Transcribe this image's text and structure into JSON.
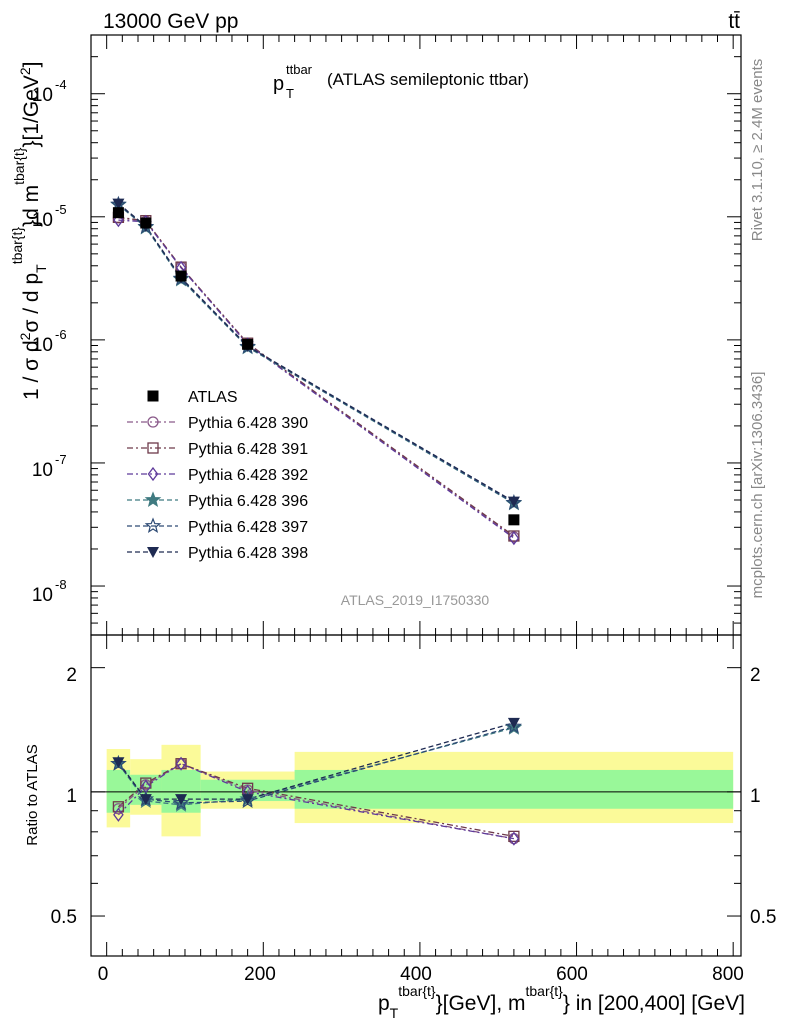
{
  "header": {
    "energy_label": "13000 GeV pp",
    "process_label": "tt̄"
  },
  "main_plot": {
    "title_main": "p",
    "title_sub": "T",
    "title_sup": "ttbar",
    "title_rest": "(ATLAS semileptonic ttbar)",
    "watermark": "ATLAS_2019_I1750330",
    "ylabel_a": "1 / σ d",
    "ylabel_b": "2",
    "ylabel_c": "σ / d p",
    "ylabel_d": "T",
    "ylabel_e": "tbar{t}",
    "ylabel_f": "}d m",
    "ylabel_g": "tbar{t}",
    "ylabel_h": "}[1/GeV",
    "ylabel_i": "2",
    "ylabel_j": "]",
    "ytick_labels": [
      "10",
      "10",
      "10",
      "10",
      "10"
    ],
    "ytick_exps": [
      "-8",
      "-7",
      "-6",
      "-5",
      "-4"
    ]
  },
  "ratio_plot": {
    "ylabel": "Ratio to ATLAS",
    "ytick_labels": [
      "0.5",
      "1",
      "2"
    ]
  },
  "xaxis": {
    "tick_labels": [
      "0",
      "200",
      "400",
      "600",
      "800"
    ],
    "label_p": "p",
    "label_T": "T",
    "label_sup1": "tbar{t}",
    "label_mid": "}[GeV], m",
    "label_sup2": "tbar{t}",
    "label_end": "} in [200,400] [GeV]"
  },
  "side": {
    "rivet": "Rivet 3.1.10, ≥ 2.4M events",
    "mcplots": "mcplots.cern.ch [arXiv:1306.3436]"
  },
  "legend": {
    "entries": [
      "ATLAS",
      "Pythia 6.428 390",
      "Pythia 6.428 391",
      "Pythia 6.428 392",
      "Pythia 6.428 396",
      "Pythia 6.428 397",
      "Pythia 6.428 398"
    ]
  },
  "chart_data": {
    "type": "scatter",
    "xlabel": "p_T^{tbar{t}}[GeV], m^{tbar{t}} in [200,400] [GeV]",
    "ylabel": "1 / σ d²σ / d p_T^{tbar{t}}d m^{tbar{t}}[1/GeV²]",
    "xlim": [
      -20,
      810
    ],
    "ylim_log": [
      4e-09,
      0.0003
    ],
    "ratio_ylim_log": [
      0.4,
      2.4
    ],
    "x": [
      15,
      50,
      95,
      180,
      520
    ],
    "x_edges": [
      [
        0,
        30
      ],
      [
        30,
        70
      ],
      [
        70,
        120
      ],
      [
        120,
        240
      ],
      [
        240,
        800
      ]
    ],
    "data": {
      "name": "ATLAS",
      "values": [
        1.08e-05,
        8.9e-06,
        3.3e-06,
        9.2e-07,
        3.45e-08
      ],
      "band_outer": [
        [
          0.82,
          1.27
        ],
        [
          0.88,
          1.2
        ],
        [
          0.78,
          1.3
        ],
        [
          0.91,
          1.12
        ],
        [
          0.84,
          1.25
        ]
      ],
      "band_inner": [
        [
          0.89,
          1.13
        ],
        [
          0.93,
          1.1
        ],
        [
          0.89,
          1.13
        ],
        [
          0.95,
          1.07
        ],
        [
          0.91,
          1.13
        ]
      ]
    },
    "series": [
      {
        "name": "Pythia 6.428 390",
        "color": "#8a5a8a",
        "dash": "6,3,2,3",
        "marker": "circle-open",
        "values": [
          9.8e-06,
          9.2e-06,
          3.9e-06,
          9.3e-07,
          2.5e-08
        ],
        "ratio": [
          0.91,
          1.04,
          1.17,
          1.01,
          0.77
        ]
      },
      {
        "name": "Pythia 6.428 391",
        "color": "#6e3a4a",
        "dash": "6,3,2,3",
        "marker": "square-open",
        "values": [
          9.9e-06,
          9.3e-06,
          3.9e-06,
          9.4e-07,
          2.55e-08
        ],
        "ratio": [
          0.92,
          1.05,
          1.17,
          1.02,
          0.78
        ]
      },
      {
        "name": "Pythia 6.428 392",
        "color": "#5e3a9a",
        "dash": "6,3,2,3",
        "marker": "diamond-open",
        "values": [
          9.4e-06,
          9.1e-06,
          3.85e-06,
          9.2e-07,
          2.45e-08
        ],
        "ratio": [
          0.88,
          1.03,
          1.17,
          1.0,
          0.77
        ]
      },
      {
        "name": "Pythia 6.428 396",
        "color": "#3f7a80",
        "dash": "5,3",
        "marker": "star-filled",
        "values": [
          1.25e-05,
          8.2e-06,
          3.1e-06,
          8.7e-07,
          4.7e-08
        ],
        "ratio": [
          1.17,
          0.95,
          0.93,
          0.96,
          1.43
        ]
      },
      {
        "name": "Pythia 6.428 397",
        "color": "#2d4a74",
        "dash": "5,3",
        "marker": "star-open",
        "values": [
          1.26e-05,
          8.3e-06,
          3.15e-06,
          8.8e-07,
          4.75e-08
        ],
        "ratio": [
          1.17,
          0.96,
          0.94,
          0.95,
          1.44
        ]
      },
      {
        "name": "Pythia 6.428 398",
        "color": "#1e2a52",
        "dash": "5,3",
        "marker": "triangle-down-filled",
        "values": [
          1.28e-05,
          8.4e-06,
          3.2e-06,
          8.9e-07,
          4.85e-08
        ],
        "ratio": [
          1.18,
          0.96,
          0.96,
          0.96,
          1.47
        ]
      }
    ]
  }
}
